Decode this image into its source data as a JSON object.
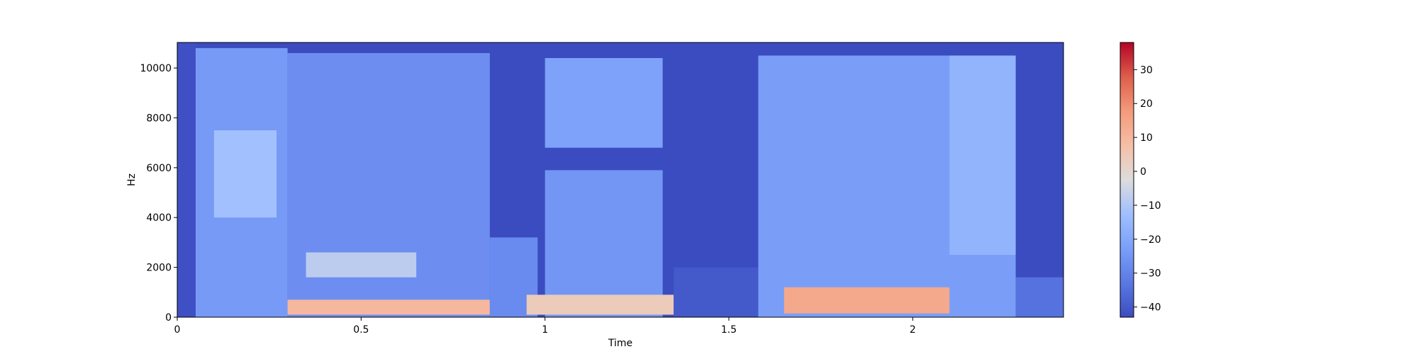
{
  "chart_data": {
    "type": "heatmap",
    "title": "",
    "xlabel": "Time",
    "ylabel": "Hz",
    "xlim": [
      0,
      2.41
    ],
    "ylim": [
      0,
      11025
    ],
    "xticks": [
      0,
      0.5,
      1,
      1.5,
      2
    ],
    "xtick_labels": [
      "0",
      "0.5",
      "1",
      "1.5",
      "2"
    ],
    "yticks": [
      0,
      2000,
      4000,
      6000,
      8000,
      10000
    ],
    "ytick_labels": [
      "0",
      "2000",
      "4000",
      "6000",
      "8000",
      "10000"
    ],
    "colorbar": {
      "colormap": "coolwarm",
      "range": [
        -43,
        38
      ],
      "ticks": [
        -40,
        -30,
        -20,
        -10,
        0,
        10,
        20,
        30
      ],
      "tick_labels": [
        "−40",
        "−30",
        "−20",
        "−10",
        "0",
        "10",
        "20",
        "30"
      ]
    },
    "colors": {
      "low": "#3b4cc0",
      "mid": "#dddddd",
      "high": "#b40426"
    },
    "regions": [
      {
        "t": [
          0.0,
          0.05
        ],
        "f": [
          0,
          11025
        ],
        "db": -42
      },
      {
        "t": [
          0.05,
          0.3
        ],
        "f": [
          0,
          10800
        ],
        "db": -24
      },
      {
        "t": [
          0.1,
          0.27
        ],
        "f": [
          4000,
          7500
        ],
        "db": -12
      },
      {
        "t": [
          0.3,
          0.85
        ],
        "f": [
          0,
          10600
        ],
        "db": -27
      },
      {
        "t": [
          0.35,
          0.65
        ],
        "f": [
          1600,
          2600
        ],
        "db": -8
      },
      {
        "t": [
          0.3,
          0.85
        ],
        "f": [
          100,
          700
        ],
        "db": 10
      },
      {
        "t": [
          0.85,
          0.98
        ],
        "f": [
          0,
          3200
        ],
        "db": -28
      },
      {
        "t": [
          1.0,
          1.32
        ],
        "f": [
          6800,
          10400
        ],
        "db": -22
      },
      {
        "t": [
          1.0,
          1.32
        ],
        "f": [
          0,
          5900
        ],
        "db": -25
      },
      {
        "t": [
          0.95,
          1.35
        ],
        "f": [
          100,
          900
        ],
        "db": 4
      },
      {
        "t": [
          1.35,
          1.6
        ],
        "f": [
          0,
          2000
        ],
        "db": -40
      },
      {
        "t": [
          1.58,
          2.28
        ],
        "f": [
          0,
          10500
        ],
        "db": -23
      },
      {
        "t": [
          1.65,
          2.1
        ],
        "f": [
          150,
          1200
        ],
        "db": 14
      },
      {
        "t": [
          2.1,
          2.28
        ],
        "f": [
          2500,
          10500
        ],
        "db": -16
      },
      {
        "t": [
          2.28,
          2.41
        ],
        "f": [
          0,
          1600
        ],
        "db": -34
      }
    ]
  }
}
